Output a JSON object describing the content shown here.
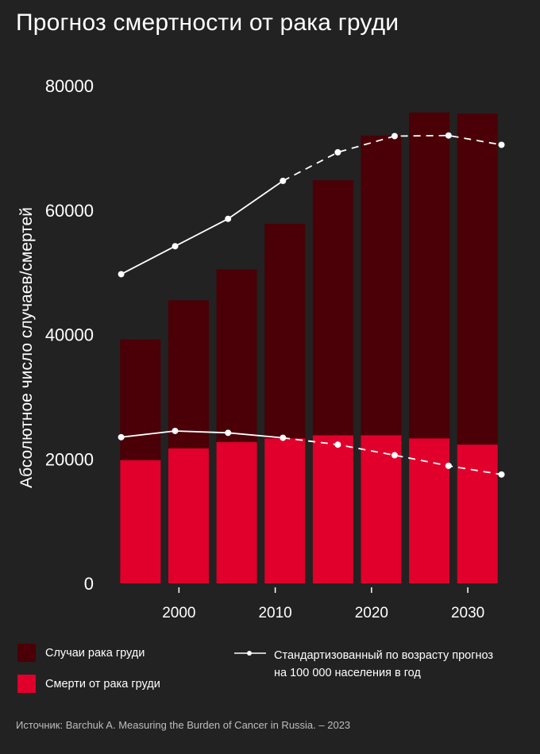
{
  "title": "Прогноз смертности от рака груди",
  "source": "Источник: Barchuk A. Measuring the Burden of Cancer in Russia. – 2023",
  "colors": {
    "background": "#222222",
    "cases": "#4a0006",
    "deaths": "#e0002b",
    "line": "#ffffff"
  },
  "legend": {
    "cases": "Случаи рака груди",
    "deaths": "Смерти от рака груди",
    "line_1": "Стандартизованный по возрасту прогноз",
    "line_2": "на 100 000 населения в год"
  },
  "chart_data": {
    "type": "bar",
    "ylabel": "Абсолютное число случаев/смертей",
    "ylim": [
      0,
      80000
    ],
    "yticks": [
      0,
      20000,
      40000,
      60000,
      80000
    ],
    "xlim": [
      1992.3,
      2034.2
    ],
    "xticks": [
      2000,
      2010,
      2020,
      2030
    ],
    "x": [
      1996,
      2001,
      2006,
      2011,
      2016,
      2021,
      2026,
      2031
    ],
    "series": [
      {
        "name": "Случаи рака груди",
        "values": [
          39200,
          45500,
          50500,
          57800,
          64800,
          72000,
          75700,
          75500
        ]
      },
      {
        "name": "Смерти от рака груди",
        "values": [
          19800,
          21700,
          22700,
          23300,
          23800,
          23800,
          23300,
          22300
        ]
      }
    ],
    "lines": [
      {
        "name": "Стандартизованный по возрасту прогноз на 100 000 населения в год",
        "x": [
          1994,
          1999.6,
          2005.1,
          2010.8,
          2016.5,
          2022.4,
          2028,
          2033.5
        ],
        "values": [
          49700,
          54200,
          58600,
          64700,
          69300,
          71900,
          72000,
          70500
        ]
      },
      {
        "name": "Стандартизованный по возрасту прогноз на 100 000 населения в год",
        "x": [
          1994,
          1999.6,
          2005.1,
          2010.8,
          2016.5,
          2022.4,
          2028,
          2033.5
        ],
        "values": [
          23500,
          24500,
          24200,
          23400,
          22300,
          20600,
          18900,
          17500
        ]
      }
    ],
    "grid": false
  }
}
